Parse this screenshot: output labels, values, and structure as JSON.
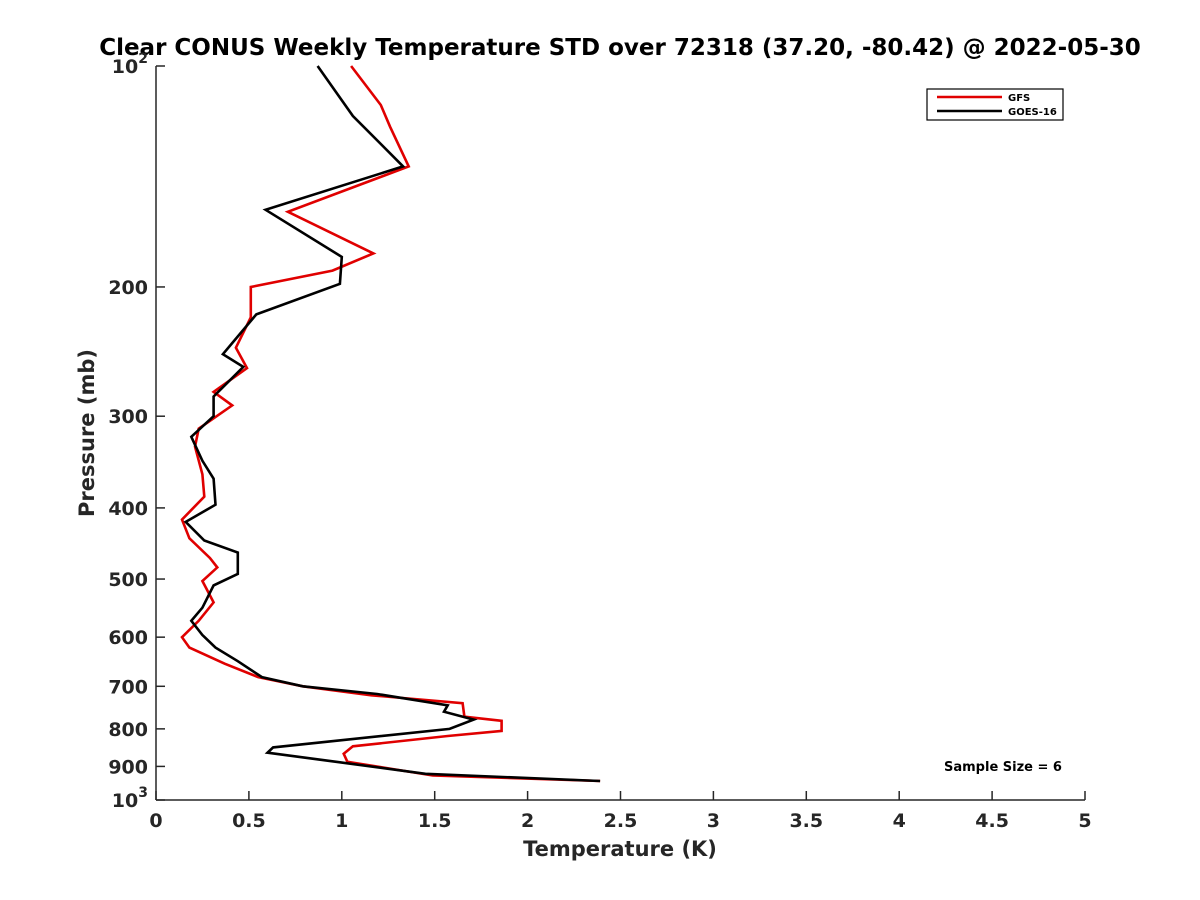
{
  "chart_data": {
    "type": "line",
    "title": "Clear CONUS Weekly Temperature STD over 72318 (37.20, -80.42) @ 2022-05-30",
    "xlabel": "Temperature (K)",
    "ylabel": "Pressure (mb)",
    "xlim": [
      0,
      5
    ],
    "ylim": [
      100,
      1000
    ],
    "yscale": "log",
    "yreversed": true,
    "xticks": [
      "0",
      "0.5",
      "1",
      "1.5",
      "2",
      "2.5",
      "3",
      "3.5",
      "4",
      "4.5",
      "5"
    ],
    "yticks": [
      {
        "value": 100,
        "base": "10",
        "exp": "2"
      },
      {
        "value": 200,
        "label": "200"
      },
      {
        "value": 300,
        "label": "300"
      },
      {
        "value": 400,
        "label": "400"
      },
      {
        "value": 500,
        "label": "500"
      },
      {
        "value": 600,
        "label": "600"
      },
      {
        "value": 700,
        "label": "700"
      },
      {
        "value": 800,
        "label": "800"
      },
      {
        "value": 900,
        "label": "900"
      },
      {
        "value": 1000,
        "base": "10",
        "exp": "3"
      }
    ],
    "legend_position": "top-right",
    "annotation": "Sample Size = 6",
    "grid": false,
    "series": [
      {
        "name": "GFS",
        "color": "#e00000",
        "points": [
          [
            1.05,
            100
          ],
          [
            1.21,
            113
          ],
          [
            1.26,
            121
          ],
          [
            1.36,
            137
          ],
          [
            0.71,
            158
          ],
          [
            1.17,
            180
          ],
          [
            0.95,
            190
          ],
          [
            0.51,
            200
          ],
          [
            0.51,
            220
          ],
          [
            0.43,
            242
          ],
          [
            0.49,
            258
          ],
          [
            0.31,
            278
          ],
          [
            0.41,
            290
          ],
          [
            0.23,
            312
          ],
          [
            0.21,
            330
          ],
          [
            0.25,
            360
          ],
          [
            0.26,
            386
          ],
          [
            0.14,
            415
          ],
          [
            0.18,
            440
          ],
          [
            0.29,
            468
          ],
          [
            0.33,
            482
          ],
          [
            0.25,
            503
          ],
          [
            0.31,
            538
          ],
          [
            0.23,
            570
          ],
          [
            0.14,
            600
          ],
          [
            0.18,
            620
          ],
          [
            0.37,
            652
          ],
          [
            0.55,
            680
          ],
          [
            0.79,
            700
          ],
          [
            1.16,
            720
          ],
          [
            1.65,
            738
          ],
          [
            1.66,
            770
          ],
          [
            1.86,
            780
          ],
          [
            1.86,
            805
          ],
          [
            1.57,
            818
          ],
          [
            1.06,
            845
          ],
          [
            1.01,
            865
          ],
          [
            1.03,
            887
          ],
          [
            1.49,
            926
          ],
          [
            2.39,
            942
          ]
        ]
      },
      {
        "name": "GOES-16",
        "color": "#000000",
        "points": [
          [
            0.87,
            100
          ],
          [
            1.06,
            117
          ],
          [
            1.33,
            137
          ],
          [
            0.59,
            157
          ],
          [
            1.0,
            182
          ],
          [
            0.99,
            198
          ],
          [
            0.54,
            218
          ],
          [
            0.36,
            247
          ],
          [
            0.47,
            257
          ],
          [
            0.31,
            282
          ],
          [
            0.31,
            300
          ],
          [
            0.19,
            320
          ],
          [
            0.25,
            345
          ],
          [
            0.31,
            365
          ],
          [
            0.32,
            396
          ],
          [
            0.16,
            418
          ],
          [
            0.26,
            443
          ],
          [
            0.44,
            460
          ],
          [
            0.44,
            492
          ],
          [
            0.31,
            510
          ],
          [
            0.25,
            547
          ],
          [
            0.19,
            570
          ],
          [
            0.25,
            596
          ],
          [
            0.32,
            620
          ],
          [
            0.44,
            647
          ],
          [
            0.57,
            680
          ],
          [
            0.79,
            700
          ],
          [
            1.19,
            717
          ],
          [
            1.57,
            743
          ],
          [
            1.55,
            758
          ],
          [
            1.71,
            777
          ],
          [
            1.58,
            800
          ],
          [
            0.63,
            848
          ],
          [
            0.6,
            862
          ],
          [
            0.98,
            888
          ],
          [
            1.45,
            921
          ],
          [
            2.39,
            942
          ]
        ]
      }
    ]
  }
}
